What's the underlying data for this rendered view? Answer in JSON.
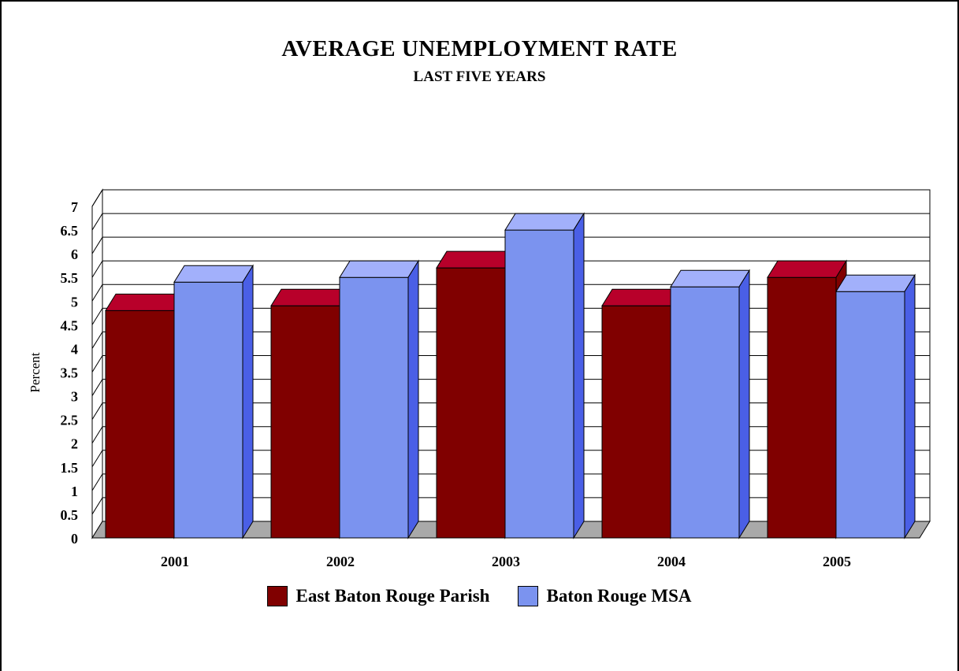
{
  "chart_data": {
    "type": "bar",
    "title": "AVERAGE UNEMPLOYMENT RATE",
    "subtitle": "LAST FIVE YEARS",
    "ylabel": "Percent",
    "xlabel": "",
    "categories": [
      "2001",
      "2002",
      "2003",
      "2004",
      "2005"
    ],
    "yticks": [
      "0",
      "0.5",
      "1",
      "1.5",
      "2",
      "2.5",
      "3",
      "3.5",
      "4",
      "4.5",
      "5",
      "5.5",
      "6",
      "6.5",
      "7"
    ],
    "ylim": [
      0,
      7
    ],
    "grid": true,
    "legend_position": "bottom",
    "series": [
      {
        "name": "East Baton Rouge Parish",
        "values": [
          4.8,
          4.9,
          5.7,
          4.9,
          5.5
        ],
        "color": "#800000",
        "top_color": "#b8002a",
        "side_color": "#800000"
      },
      {
        "name": "Baton Rouge MSA",
        "values": [
          5.4,
          5.5,
          6.5,
          5.3,
          5.2
        ],
        "color": "#7b93ef",
        "top_color": "#a2b0fb",
        "side_color": "#4a5fe6"
      }
    ]
  }
}
